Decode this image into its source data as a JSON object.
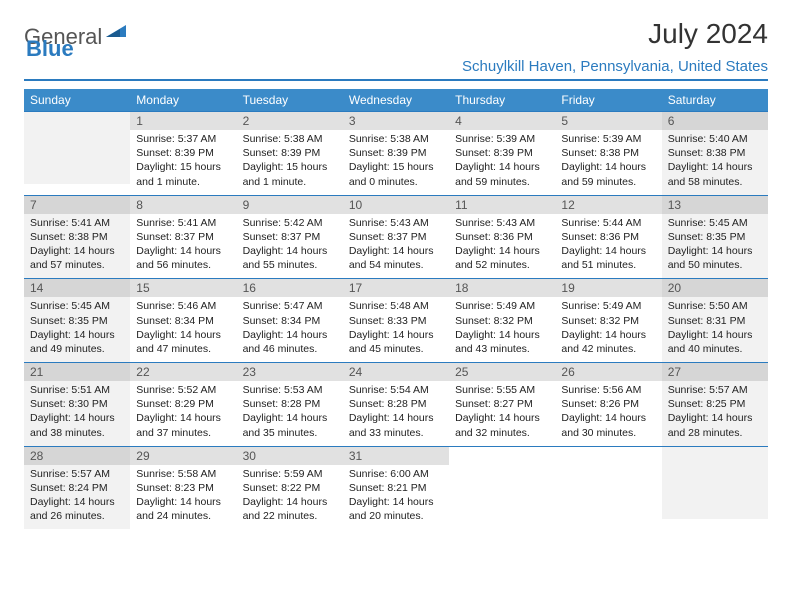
{
  "brand": {
    "part1": "General",
    "part2": "Blue"
  },
  "title": "July 2024",
  "location": "Schuylkill Haven, Pennsylvania, United States",
  "colors": {
    "header_bg": "#3b8bc9",
    "accent": "#2b7bbf",
    "daynum_bg": "#e1e1e1",
    "shade_bg": "#f2f2f2"
  },
  "day_headers": [
    "Sunday",
    "Monday",
    "Tuesday",
    "Wednesday",
    "Thursday",
    "Friday",
    "Saturday"
  ],
  "weeks": [
    [
      null,
      {
        "n": "1",
        "sr": "5:37 AM",
        "ss": "8:39 PM",
        "dl": "15 hours and 1 minute."
      },
      {
        "n": "2",
        "sr": "5:38 AM",
        "ss": "8:39 PM",
        "dl": "15 hours and 1 minute."
      },
      {
        "n": "3",
        "sr": "5:38 AM",
        "ss": "8:39 PM",
        "dl": "15 hours and 0 minutes."
      },
      {
        "n": "4",
        "sr": "5:39 AM",
        "ss": "8:39 PM",
        "dl": "14 hours and 59 minutes."
      },
      {
        "n": "5",
        "sr": "5:39 AM",
        "ss": "8:38 PM",
        "dl": "14 hours and 59 minutes."
      },
      {
        "n": "6",
        "sr": "5:40 AM",
        "ss": "8:38 PM",
        "dl": "14 hours and 58 minutes."
      }
    ],
    [
      {
        "n": "7",
        "sr": "5:41 AM",
        "ss": "8:38 PM",
        "dl": "14 hours and 57 minutes."
      },
      {
        "n": "8",
        "sr": "5:41 AM",
        "ss": "8:37 PM",
        "dl": "14 hours and 56 minutes."
      },
      {
        "n": "9",
        "sr": "5:42 AM",
        "ss": "8:37 PM",
        "dl": "14 hours and 55 minutes."
      },
      {
        "n": "10",
        "sr": "5:43 AM",
        "ss": "8:37 PM",
        "dl": "14 hours and 54 minutes."
      },
      {
        "n": "11",
        "sr": "5:43 AM",
        "ss": "8:36 PM",
        "dl": "14 hours and 52 minutes."
      },
      {
        "n": "12",
        "sr": "5:44 AM",
        "ss": "8:36 PM",
        "dl": "14 hours and 51 minutes."
      },
      {
        "n": "13",
        "sr": "5:45 AM",
        "ss": "8:35 PM",
        "dl": "14 hours and 50 minutes."
      }
    ],
    [
      {
        "n": "14",
        "sr": "5:45 AM",
        "ss": "8:35 PM",
        "dl": "14 hours and 49 minutes."
      },
      {
        "n": "15",
        "sr": "5:46 AM",
        "ss": "8:34 PM",
        "dl": "14 hours and 47 minutes."
      },
      {
        "n": "16",
        "sr": "5:47 AM",
        "ss": "8:34 PM",
        "dl": "14 hours and 46 minutes."
      },
      {
        "n": "17",
        "sr": "5:48 AM",
        "ss": "8:33 PM",
        "dl": "14 hours and 45 minutes."
      },
      {
        "n": "18",
        "sr": "5:49 AM",
        "ss": "8:32 PM",
        "dl": "14 hours and 43 minutes."
      },
      {
        "n": "19",
        "sr": "5:49 AM",
        "ss": "8:32 PM",
        "dl": "14 hours and 42 minutes."
      },
      {
        "n": "20",
        "sr": "5:50 AM",
        "ss": "8:31 PM",
        "dl": "14 hours and 40 minutes."
      }
    ],
    [
      {
        "n": "21",
        "sr": "5:51 AM",
        "ss": "8:30 PM",
        "dl": "14 hours and 38 minutes."
      },
      {
        "n": "22",
        "sr": "5:52 AM",
        "ss": "8:29 PM",
        "dl": "14 hours and 37 minutes."
      },
      {
        "n": "23",
        "sr": "5:53 AM",
        "ss": "8:28 PM",
        "dl": "14 hours and 35 minutes."
      },
      {
        "n": "24",
        "sr": "5:54 AM",
        "ss": "8:28 PM",
        "dl": "14 hours and 33 minutes."
      },
      {
        "n": "25",
        "sr": "5:55 AM",
        "ss": "8:27 PM",
        "dl": "14 hours and 32 minutes."
      },
      {
        "n": "26",
        "sr": "5:56 AM",
        "ss": "8:26 PM",
        "dl": "14 hours and 30 minutes."
      },
      {
        "n": "27",
        "sr": "5:57 AM",
        "ss": "8:25 PM",
        "dl": "14 hours and 28 minutes."
      }
    ],
    [
      {
        "n": "28",
        "sr": "5:57 AM",
        "ss": "8:24 PM",
        "dl": "14 hours and 26 minutes."
      },
      {
        "n": "29",
        "sr": "5:58 AM",
        "ss": "8:23 PM",
        "dl": "14 hours and 24 minutes."
      },
      {
        "n": "30",
        "sr": "5:59 AM",
        "ss": "8:22 PM",
        "dl": "14 hours and 22 minutes."
      },
      {
        "n": "31",
        "sr": "6:00 AM",
        "ss": "8:21 PM",
        "dl": "14 hours and 20 minutes."
      },
      null,
      null,
      null
    ]
  ],
  "labels": {
    "sunrise": "Sunrise:",
    "sunset": "Sunset:",
    "daylight": "Daylight:"
  }
}
